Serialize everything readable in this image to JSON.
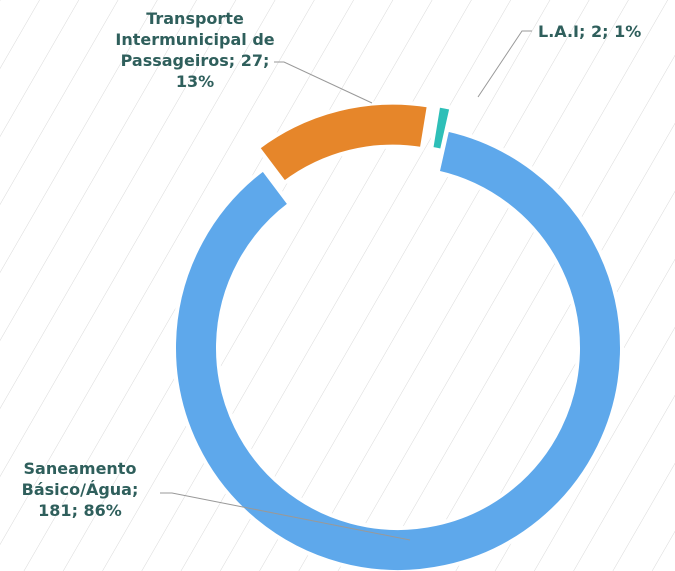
{
  "chart_data": {
    "type": "donut",
    "categories": [
      "Transporte Intermunicipal de Passageiros",
      "L.A.I",
      "Saneamento Básico/Água"
    ],
    "values": [
      27,
      2,
      181
    ],
    "value_labels": [
      "13%",
      "1%",
      "86%"
    ],
    "colors": [
      "#e6862a",
      "#2ebfb8",
      "#5ea8eb"
    ],
    "exploded": [
      true,
      true,
      false
    ]
  }
}
